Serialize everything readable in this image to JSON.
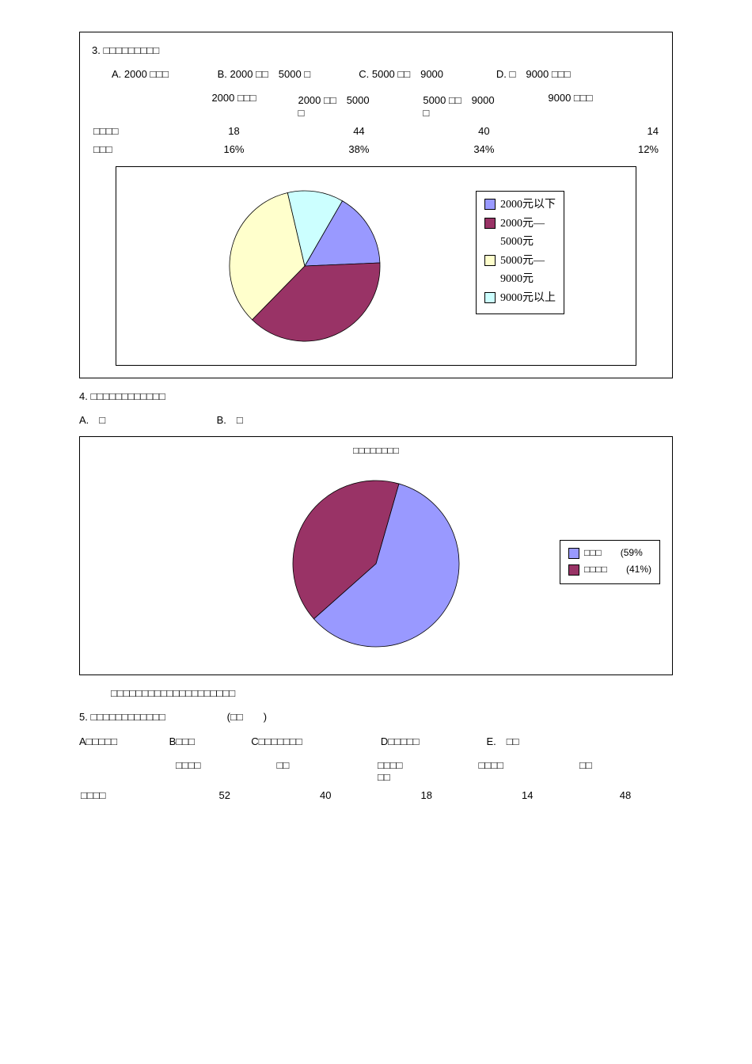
{
  "q3": {
    "title": "3. □□□□□□□□□",
    "options_line": {
      "a": "A. 2000 □□□",
      "b": "B. 2000 □□　5000 □",
      "c": "C. 5000 □□　9000",
      "d": "D. □　9000 □□□"
    },
    "table": {
      "headers": [
        "",
        "2000 □□□",
        "2000 □□　5000\n□",
        "5000 □□　9000\n□",
        "9000 □□□"
      ],
      "rows": [
        {
          "label": "□□□□",
          "cells": [
            "18",
            "44",
            "40",
            "14"
          ]
        },
        {
          "label": "□□□",
          "cells": [
            "16%",
            "38%",
            "34%",
            "12%"
          ]
        }
      ]
    },
    "chart": {
      "type": "pie",
      "slices": [
        {
          "label": "2000元以下",
          "value": 16,
          "color": "#9999ff"
        },
        {
          "label": "2000元—\n5000元",
          "value": 38,
          "color": "#993366"
        },
        {
          "label": "5000元—\n9000元",
          "value": 34,
          "color": "#ffffcc"
        },
        {
          "label": "9000元以上",
          "value": 12,
          "color": "#ccffff"
        }
      ],
      "start_angle_deg": -60,
      "stroke": "#000000",
      "stroke_width": 0.8,
      "radius": 95,
      "legend_border": "#000000"
    }
  },
  "q4": {
    "title": "4. □□□□□□□□□□□□",
    "options": {
      "a": "A.　□",
      "b": "B.　□"
    },
    "chart": {
      "type": "pie",
      "title_inner": "□□□□□□□□",
      "slices": [
        {
          "label": "□□□　　(59%",
          "value": 59,
          "color": "#9999ff"
        },
        {
          "label": "□□□□　　(41%)",
          "value": 41,
          "color": "#993366"
        }
      ],
      "start_angle_deg": -74,
      "stroke": "#000000",
      "stroke_width": 0.8,
      "radius": 105,
      "legend_border": "#000000"
    },
    "note": "□□□□□□□□□□□□□□□□□□□□"
  },
  "q5": {
    "title": "5. □□□□□□□□□□□□　　　　　　(□□　　)",
    "options": {
      "a": "A□□□□□",
      "b": "B□□□",
      "c": "C□□□□□□□",
      "d": "D□□□□□",
      "e": "E.　□□"
    },
    "table": {
      "headers": [
        "",
        "□□□□",
        "□□",
        "□□□□\n□□",
        "□□□□",
        "□□"
      ],
      "row": {
        "label": "□□□□",
        "cells": [
          "52",
          "40",
          "18",
          "14",
          "48"
        ]
      }
    }
  }
}
